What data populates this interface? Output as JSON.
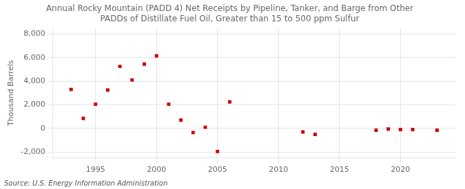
{
  "chart_data": {
    "type": "scatter",
    "title": "Annual Rocky Mountain (PADD 4) Net Receipts by Pipeline, Tanker, and Barge from Other\nPADDs of Distillate Fuel Oil, Greater than 15 to 500 ppm Sulfur",
    "ylabel": "Thousand Barrels",
    "annotation": "Source: U.S. Energy Information Administration",
    "x": [
      1993,
      1994,
      1995,
      1996,
      1997,
      1998,
      1999,
      2000,
      2001,
      2002,
      2003,
      2004,
      2005,
      2006,
      2012,
      2013,
      2018,
      2019,
      2020,
      2021,
      2023
    ],
    "values": [
      3300,
      850,
      2050,
      3250,
      5250,
      4100,
      5450,
      6150,
      2050,
      700,
      -350,
      100,
      -1950,
      2250,
      -300,
      -500,
      -150,
      -50,
      -100,
      -100,
      -150
    ],
    "color": "#cc0000",
    "marker": "square",
    "xlim": [
      1991.5,
      2024.5
    ],
    "xticks": [
      1995,
      2000,
      2005,
      2010,
      2015,
      2020
    ],
    "ylim": [
      -2500,
      8500
    ],
    "yticks": [
      {
        "value": -2000,
        "label": "-2,000"
      },
      0,
      {
        "value": 2000,
        "label": "2,000"
      },
      {
        "value": 4000,
        "label": "4,000"
      },
      {
        "value": 6000,
        "label": "6,000"
      },
      {
        "value": 8000,
        "label": "8,000"
      }
    ],
    "grid": true
  }
}
